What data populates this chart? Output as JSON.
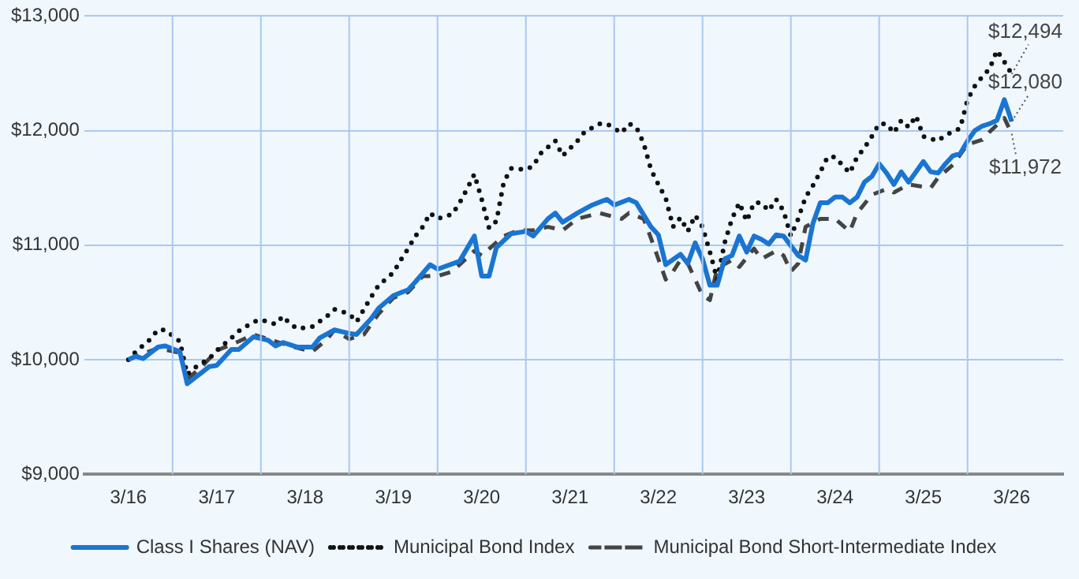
{
  "chart_data": {
    "type": "line",
    "xlim": [
      "2015-09",
      "2026-10"
    ],
    "xticks": [
      {
        "value": "2016-03",
        "label": "3/16"
      },
      {
        "value": "2017-03",
        "label": "3/17"
      },
      {
        "value": "2018-03",
        "label": "3/18"
      },
      {
        "value": "2019-03",
        "label": "3/19"
      },
      {
        "value": "2020-03",
        "label": "3/20"
      },
      {
        "value": "2021-03",
        "label": "3/21"
      },
      {
        "value": "2022-03",
        "label": "3/22"
      },
      {
        "value": "2023-03",
        "label": "3/23"
      },
      {
        "value": "2024-03",
        "label": "3/24"
      },
      {
        "value": "2025-03",
        "label": "3/25"
      },
      {
        "value": "2026-03",
        "label": "3/26"
      }
    ],
    "ylim": [
      9000,
      13000
    ],
    "yticks": [
      {
        "value": 9000,
        "label": "$9,000"
      },
      {
        "value": 10000,
        "label": "$10,000"
      },
      {
        "value": 11000,
        "label": "$11,000"
      },
      {
        "value": 12000,
        "label": "$12,000"
      },
      {
        "value": 13000,
        "label": "$13,000"
      }
    ],
    "grid": true,
    "legend": "bottom",
    "marker": "none",
    "series": [
      {
        "name": "Class I Shares (NAV)",
        "color": "#1a75d2",
        "line_style": "solid",
        "x": [
          "2016-03",
          "2016-04",
          "2016-05",
          "2016-07",
          "2016-08",
          "2016-10",
          "2016-11",
          "2017-02",
          "2017-03",
          "2017-05",
          "2017-06",
          "2017-08",
          "2017-10",
          "2017-11",
          "2017-12",
          "2018-02",
          "2018-04",
          "2018-05",
          "2018-07",
          "2018-09",
          "2018-10",
          "2018-12",
          "2019-01",
          "2019-03",
          "2019-05",
          "2019-06",
          "2019-08",
          "2019-09",
          "2019-12",
          "2020-02",
          "2020-03",
          "2020-04",
          "2020-05",
          "2020-07",
          "2020-09",
          "2020-10",
          "2020-12",
          "2021-01",
          "2021-02",
          "2021-04",
          "2021-06",
          "2021-08",
          "2021-09",
          "2021-11",
          "2021-12",
          "2022-02",
          "2022-03",
          "2022-04",
          "2022-06",
          "2022-07",
          "2022-08",
          "2022-09",
          "2022-10",
          "2022-11",
          "2022-12",
          "2023-01",
          "2023-02",
          "2023-03",
          "2023-04",
          "2023-05",
          "2023-06",
          "2023-07",
          "2023-08",
          "2023-10",
          "2023-11",
          "2023-12",
          "2024-01",
          "2024-02",
          "2024-03",
          "2024-04",
          "2024-05",
          "2024-06",
          "2024-07",
          "2024-08",
          "2024-09",
          "2024-10",
          "2024-11",
          "2024-12",
          "2025-01",
          "2025-03",
          "2025-04",
          "2025-05",
          "2025-06",
          "2025-07",
          "2025-08",
          "2025-09",
          "2025-10",
          "2025-11",
          "2025-12",
          "2026-01",
          "2026-02",
          "2026-03"
        ],
        "values": [
          10000,
          10030,
          10010,
          10110,
          10120,
          10070,
          9790,
          9940,
          9950,
          10090,
          10090,
          10200,
          10170,
          10120,
          10150,
          10110,
          10110,
          10190,
          10260,
          10230,
          10220,
          10360,
          10450,
          10560,
          10610,
          10680,
          10830,
          10790,
          10860,
          11080,
          10730,
          10730,
          10980,
          11100,
          11120,
          11080,
          11230,
          11280,
          11200,
          11280,
          11350,
          11400,
          11350,
          11400,
          11370,
          11160,
          11090,
          10830,
          10920,
          10840,
          11020,
          10880,
          10650,
          10650,
          10880,
          10910,
          11080,
          10940,
          11080,
          11050,
          11010,
          11090,
          11080,
          10910,
          10870,
          11190,
          11370,
          11370,
          11420,
          11420,
          11370,
          11420,
          11550,
          11600,
          11710,
          11630,
          11530,
          11640,
          11550,
          11730,
          11640,
          11630,
          11710,
          11780,
          11800,
          11910,
          12000,
          12040,
          12060,
          12090,
          12270,
          12080
        ]
      },
      {
        "name": "Municipal Bond Index",
        "color": "#111111",
        "line_style": "dotted",
        "x": [
          "2016-03",
          "2016-04",
          "2016-06",
          "2016-07",
          "2016-08",
          "2016-10",
          "2016-11",
          "2016-12",
          "2017-02",
          "2017-03",
          "2017-05",
          "2017-06",
          "2017-08",
          "2017-09",
          "2017-11",
          "2017-12",
          "2018-01",
          "2018-02",
          "2018-04",
          "2018-06",
          "2018-07",
          "2018-09",
          "2018-10",
          "2018-11",
          "2018-12",
          "2019-01",
          "2019-03",
          "2019-04",
          "2019-05",
          "2019-06",
          "2019-07",
          "2019-08",
          "2019-09",
          "2019-11",
          "2019-12",
          "2020-01",
          "2020-02",
          "2020-03",
          "2020-04",
          "2020-05",
          "2020-06",
          "2020-07",
          "2020-09",
          "2020-10",
          "2020-11",
          "2021-01",
          "2021-02",
          "2021-04",
          "2021-05",
          "2021-07",
          "2021-08",
          "2021-10",
          "2021-11",
          "2021-12",
          "2022-01",
          "2022-02",
          "2022-03",
          "2022-04",
          "2022-05",
          "2022-06",
          "2022-07",
          "2022-08",
          "2022-09",
          "2022-10",
          "2022-11",
          "2022-12",
          "2023-01",
          "2023-02",
          "2023-03",
          "2023-04",
          "2023-05",
          "2023-06",
          "2023-07",
          "2023-08",
          "2023-09",
          "2023-10",
          "2023-11",
          "2023-12",
          "2024-01",
          "2024-02",
          "2024-03",
          "2024-04",
          "2024-05",
          "2024-06",
          "2024-07",
          "2024-08",
          "2024-09",
          "2024-10",
          "2024-11",
          "2024-12",
          "2025-01",
          "2025-02",
          "2025-03",
          "2025-05",
          "2025-06",
          "2025-08",
          "2025-09",
          "2025-10",
          "2025-11",
          "2025-12",
          "2026-01",
          "2026-02",
          "2026-03"
        ],
        "values": [
          10000,
          10070,
          10180,
          10260,
          10260,
          10160,
          9870,
          9930,
          10010,
          10080,
          10190,
          10250,
          10330,
          10350,
          10310,
          10380,
          10310,
          10270,
          10290,
          10380,
          10440,
          10400,
          10330,
          10440,
          10550,
          10650,
          10760,
          10870,
          10970,
          11080,
          11160,
          11280,
          11230,
          11270,
          11370,
          11490,
          11620,
          11400,
          11150,
          11210,
          11550,
          11670,
          11660,
          11690,
          11800,
          11910,
          11780,
          11910,
          11990,
          12060,
          12060,
          11980,
          12060,
          12030,
          11890,
          11660,
          11530,
          11410,
          11160,
          11240,
          11120,
          11260,
          11160,
          10940,
          10700,
          11020,
          11230,
          11370,
          11210,
          11370,
          11370,
          11300,
          11400,
          11300,
          11080,
          11230,
          11420,
          11520,
          11640,
          11770,
          11770,
          11700,
          11630,
          11770,
          11850,
          11950,
          12060,
          12060,
          11980,
          12090,
          12030,
          12130,
          11950,
          11910,
          11960,
          12020,
          12270,
          12390,
          12470,
          12540,
          12700,
          12600,
          12494
        ]
      },
      {
        "name": "Municipal Bond Short-Intermediate Index",
        "color": "#444444",
        "line_style": "dashed",
        "x": [
          "2016-03",
          "2016-04",
          "2016-07",
          "2016-10",
          "2016-11",
          "2017-01",
          "2017-03",
          "2017-06",
          "2017-08",
          "2017-11",
          "2018-01",
          "2018-04",
          "2018-06",
          "2018-07",
          "2018-09",
          "2018-11",
          "2019-01",
          "2019-03",
          "2019-05",
          "2019-07",
          "2019-09",
          "2019-11",
          "2020-02",
          "2020-03",
          "2020-06",
          "2020-08",
          "2020-10",
          "2020-12",
          "2021-02",
          "2021-04",
          "2021-07",
          "2021-10",
          "2021-11",
          "2022-01",
          "2022-02",
          "2022-03",
          "2022-04",
          "2022-05",
          "2022-06",
          "2022-07",
          "2022-08",
          "2022-09",
          "2022-10",
          "2022-11",
          "2023-01",
          "2023-02",
          "2023-04",
          "2023-05",
          "2023-07",
          "2023-08",
          "2023-09",
          "2023-10",
          "2023-11",
          "2024-01",
          "2024-03",
          "2024-05",
          "2024-06",
          "2024-08",
          "2024-10",
          "2024-11",
          "2025-01",
          "2025-04",
          "2025-05",
          "2025-07",
          "2025-09",
          "2025-11",
          "2025-12",
          "2026-02",
          "2026-03"
        ],
        "values": [
          10000,
          10030,
          10100,
          10060,
          9830,
          9940,
          10080,
          10160,
          10220,
          10160,
          10120,
          10070,
          10180,
          10260,
          10180,
          10220,
          10400,
          10540,
          10590,
          10730,
          10730,
          10770,
          10950,
          10910,
          11080,
          11130,
          11130,
          11160,
          11130,
          11230,
          11280,
          11230,
          11280,
          11230,
          11060,
          10880,
          10700,
          10770,
          10870,
          10840,
          10700,
          10560,
          10520,
          10800,
          10870,
          10810,
          10970,
          10880,
          10950,
          10910,
          10770,
          10840,
          11160,
          11230,
          11230,
          11120,
          11280,
          11440,
          11490,
          11460,
          11530,
          11500,
          11590,
          11700,
          11880,
          11920,
          11990,
          12110,
          11972
        ]
      }
    ],
    "annotations": [
      {
        "text": "$12,494",
        "x": "2026-03",
        "y": 12494
      },
      {
        "text": "$12,080",
        "x": "2026-03",
        "y": 12080
      },
      {
        "text": "$11,972",
        "x": "2026-03",
        "y": 11972
      }
    ]
  }
}
